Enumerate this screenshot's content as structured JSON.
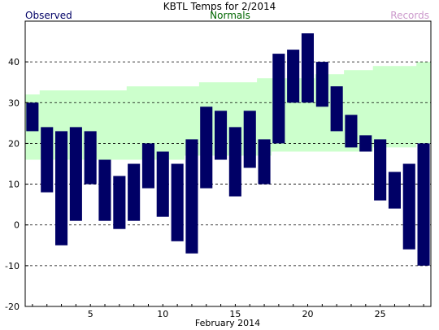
{
  "colors": {
    "observed": "#000066",
    "normals_band": "#ccffcc",
    "normals_label": "#006600",
    "records_label": "#cc99cc",
    "grid": "#000000",
    "background": "#ffffff"
  },
  "chart_data": {
    "type": "bar",
    "title": "KBTL Temps for 2/2014",
    "xlabel": "February 2014",
    "ylabel": "",
    "legend": {
      "observed": "Observed",
      "normals": "Normals",
      "records": "Records"
    },
    "xlim": [
      0.5,
      28.5
    ],
    "ylim": [
      -20,
      50
    ],
    "x_ticks": [
      5,
      10,
      15,
      20,
      25
    ],
    "y_ticks": [
      -20,
      -10,
      0,
      10,
      20,
      30,
      40
    ],
    "grid": "horizontal-dashed",
    "days": [
      1,
      2,
      3,
      4,
      5,
      6,
      7,
      8,
      9,
      10,
      11,
      12,
      13,
      14,
      15,
      16,
      17,
      18,
      19,
      20,
      21,
      22,
      23,
      24,
      25,
      26,
      27,
      28
    ],
    "observed_high": [
      30,
      24,
      23,
      24,
      23,
      16,
      12,
      15,
      20,
      18,
      15,
      21,
      29,
      28,
      24,
      28,
      21,
      42,
      43,
      47,
      40,
      34,
      27,
      22,
      21,
      13,
      15,
      20
    ],
    "observed_low": [
      23,
      8,
      -5,
      1,
      10,
      1,
      -1,
      1,
      9,
      2,
      -4,
      -7,
      9,
      16,
      7,
      14,
      10,
      20,
      30,
      30,
      29,
      23,
      19,
      18,
      6,
      4,
      -6,
      -10
    ],
    "normal_high": [
      32,
      33,
      33,
      33,
      33,
      33,
      33,
      34,
      34,
      34,
      34,
      34,
      35,
      35,
      35,
      35,
      36,
      36,
      36,
      36,
      37,
      37,
      38,
      38,
      39,
      39,
      39,
      40
    ],
    "normal_low": [
      16,
      16,
      16,
      16,
      16,
      16,
      16,
      16,
      16,
      16,
      16,
      17,
      17,
      17,
      17,
      17,
      17,
      18,
      18,
      18,
      18,
      18,
      18,
      18,
      19,
      19,
      19,
      20
    ]
  }
}
